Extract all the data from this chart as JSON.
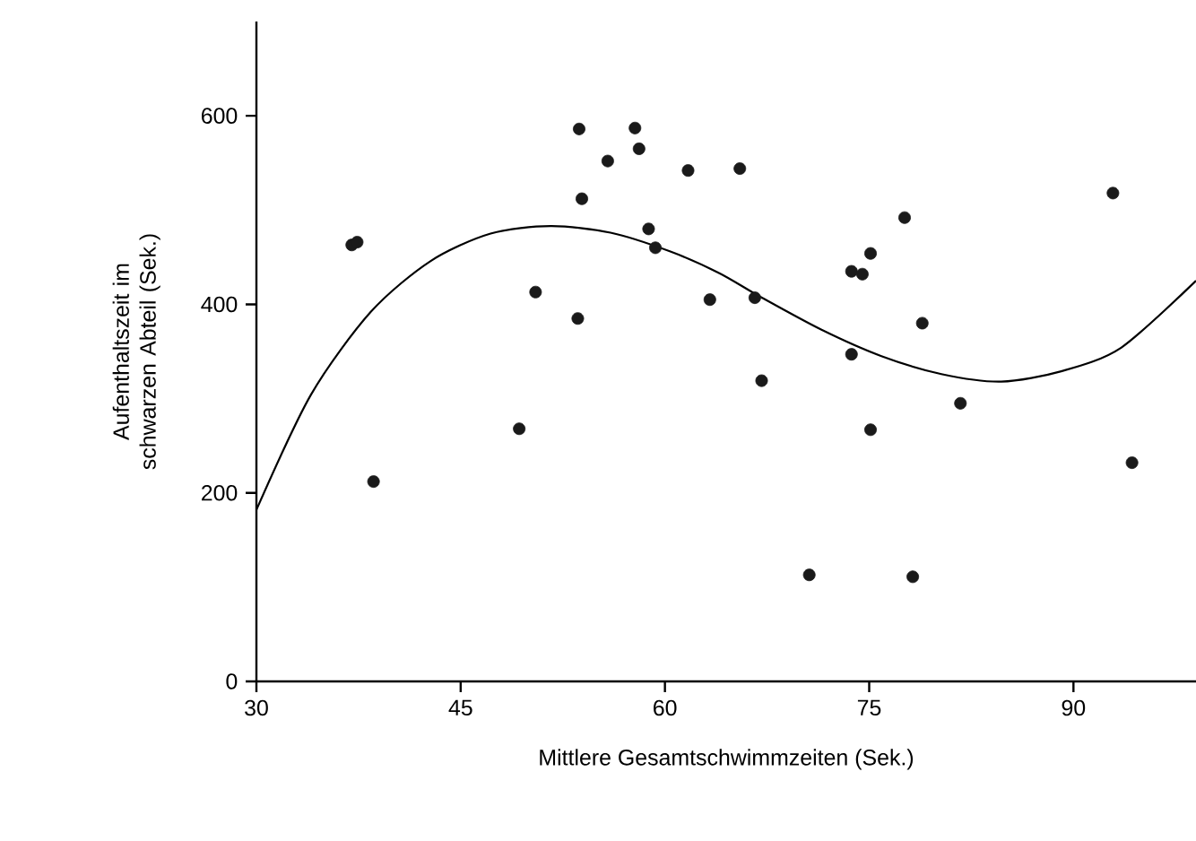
{
  "chart_data": {
    "type": "scatter",
    "xlabel": "Mittlere Gesamtschwimmzeiten (Sek.)",
    "ylabel": "Aufenthaltszeit im schwarzen Abteil (Sek.)",
    "xlim": [
      30,
      99
    ],
    "ylim": [
      0,
      700
    ],
    "xticks": [
      30,
      45,
      60,
      75,
      90
    ],
    "yticks": [
      0,
      200,
      400,
      600
    ],
    "grid": false,
    "series": [
      {
        "marker": "circle",
        "color": "#1a1a1a",
        "x": [
          37.0,
          37.4,
          38.6,
          49.3,
          50.5,
          53.6,
          53.7,
          53.9,
          55.8,
          57.8,
          58.1,
          58.8,
          59.3,
          61.7,
          63.3,
          65.5,
          66.6,
          67.1,
          70.6,
          73.7,
          73.7,
          74.5,
          75.1,
          75.1,
          77.6,
          78.2,
          78.9,
          81.7,
          92.9,
          94.3
        ],
        "values": [
          463,
          466,
          212,
          268,
          413,
          385,
          586,
          512,
          552,
          587,
          565,
          480,
          460,
          542,
          405,
          544,
          407,
          319,
          113,
          347,
          435,
          432,
          454,
          267,
          492,
          111,
          380,
          295,
          518,
          232
        ]
      },
      {
        "type": "line",
        "marker": "none",
        "line_style": "solid",
        "color": "#000000",
        "x": [
          30,
          34,
          38.4,
          42.8,
          47.2,
          51.6,
          56,
          60.4,
          64,
          67,
          71.5,
          75.9,
          80.3,
          84.7,
          89.1,
          93.5,
          99
        ],
        "values": [
          182,
          304,
          392,
          446,
          475,
          483,
          476,
          456,
          433,
          408,
          373,
          345,
          326,
          318,
          329,
          354,
          425
        ]
      }
    ]
  }
}
